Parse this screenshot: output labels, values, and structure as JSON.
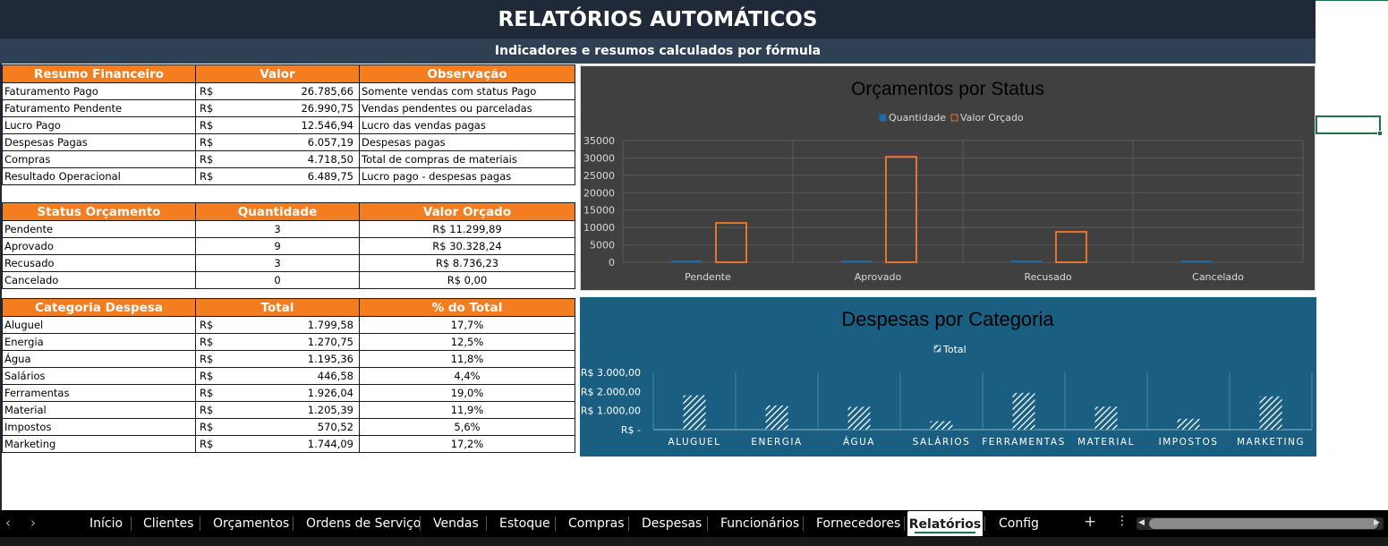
{
  "header": {
    "title": "RELATÓRIOS AUTOMÁTICOS",
    "subtitle": "Indicadores e resumos calculados por fórmula"
  },
  "resumo_financeiro": {
    "headers": [
      "Resumo Financeiro",
      "Valor",
      "Observação"
    ],
    "currency": "R$",
    "rows": [
      {
        "label": "Faturamento Pago",
        "value": "26.785,66",
        "note": "Somente vendas com status Pago"
      },
      {
        "label": "Faturamento Pendente",
        "value": "26.990,75",
        "note": "Vendas pendentes ou parceladas"
      },
      {
        "label": "Lucro Pago",
        "value": "12.546,94",
        "note": "Lucro das vendas pagas"
      },
      {
        "label": "Despesas Pagas",
        "value": "6.057,19",
        "note": "Despesas pagas"
      },
      {
        "label": "Compras",
        "value": "4.718,50",
        "note": "Total de compras de materiais"
      },
      {
        "label": "Resultado Operacional",
        "value": "6.489,75",
        "note": "Lucro pago - despesas pagas"
      }
    ]
  },
  "status_orcamento": {
    "headers": [
      "Status Orçamento",
      "Quantidade",
      "Valor Orçado"
    ],
    "rows": [
      {
        "status": "Pendente",
        "qty": "3",
        "value": "R$ 11.299,89"
      },
      {
        "status": "Aprovado",
        "qty": "9",
        "value": "R$ 30.328,24"
      },
      {
        "status": "Recusado",
        "qty": "3",
        "value": "R$ 8.736,23"
      },
      {
        "status": "Cancelado",
        "qty": "0",
        "value": "R$ 0,00"
      }
    ]
  },
  "categoria_despesa": {
    "headers": [
      "Categoria Despesa",
      "Total",
      "% do Total"
    ],
    "currency": "R$",
    "rows": [
      {
        "cat": "Aluguel",
        "total": "1.799,58",
        "pct": "17,7%"
      },
      {
        "cat": "Energia",
        "total": "1.270,75",
        "pct": "12,5%"
      },
      {
        "cat": "Água",
        "total": "1.195,36",
        "pct": "11,8%"
      },
      {
        "cat": "Salários",
        "total": "446,58",
        "pct": "4,4%"
      },
      {
        "cat": "Ferramentas",
        "total": "1.926,04",
        "pct": "19,0%"
      },
      {
        "cat": "Material",
        "total": "1.205,39",
        "pct": "11,9%"
      },
      {
        "cat": "Impostos",
        "total": "570,52",
        "pct": "5,6%"
      },
      {
        "cat": "Marketing",
        "total": "1.744,09",
        "pct": "17,2%"
      }
    ]
  },
  "chart_data": [
    {
      "type": "bar",
      "title": "Orçamentos por Status",
      "categories": [
        "Pendente",
        "Aprovado",
        "Recusado",
        "Cancelado"
      ],
      "series": [
        {
          "name": "Quantidade",
          "values": [
            3,
            9,
            3,
            0
          ],
          "color": "#1f6ba6"
        },
        {
          "name": "Valor Orçado",
          "values": [
            11299.89,
            30328.24,
            8736.23,
            0
          ],
          "color": "#e8742a"
        }
      ],
      "yticks": [
        "0",
        "5000",
        "10000",
        "15000",
        "20000",
        "25000",
        "30000",
        "35000"
      ],
      "ylim": [
        0,
        35000
      ],
      "legend": "top",
      "grid": true,
      "background": "#404040"
    },
    {
      "type": "bar",
      "title": "Despesas por Categoria",
      "categories": [
        "ALUGUEL",
        "ENERGIA",
        "ÁGUA",
        "SALÁRIOS",
        "FERRAMENTAS",
        "MATERIAL",
        "IMPOSTOS",
        "MARKETING"
      ],
      "series": [
        {
          "name": "Total",
          "values": [
            1799.58,
            1270.75,
            1195.36,
            446.58,
            1926.04,
            1205.39,
            570.52,
            1744.09
          ],
          "pattern": "hatched-white"
        }
      ],
      "yticks": [
        "R$ -",
        "R$ 1.000,00",
        "R$ 2.000,00",
        "R$ 3.000,00"
      ],
      "ylim": [
        0,
        3000
      ],
      "legend": "top",
      "grid": false,
      "background": "#1a5f82"
    }
  ],
  "tabs": {
    "items": [
      "Início",
      "Clientes",
      "Orçamentos",
      "Ordens de Serviço",
      "Vendas",
      "Estoque",
      "Compras",
      "Despesas",
      "Funcionários",
      "Fornecedores",
      "Relatórios",
      "Config"
    ],
    "active": "Relatórios"
  }
}
